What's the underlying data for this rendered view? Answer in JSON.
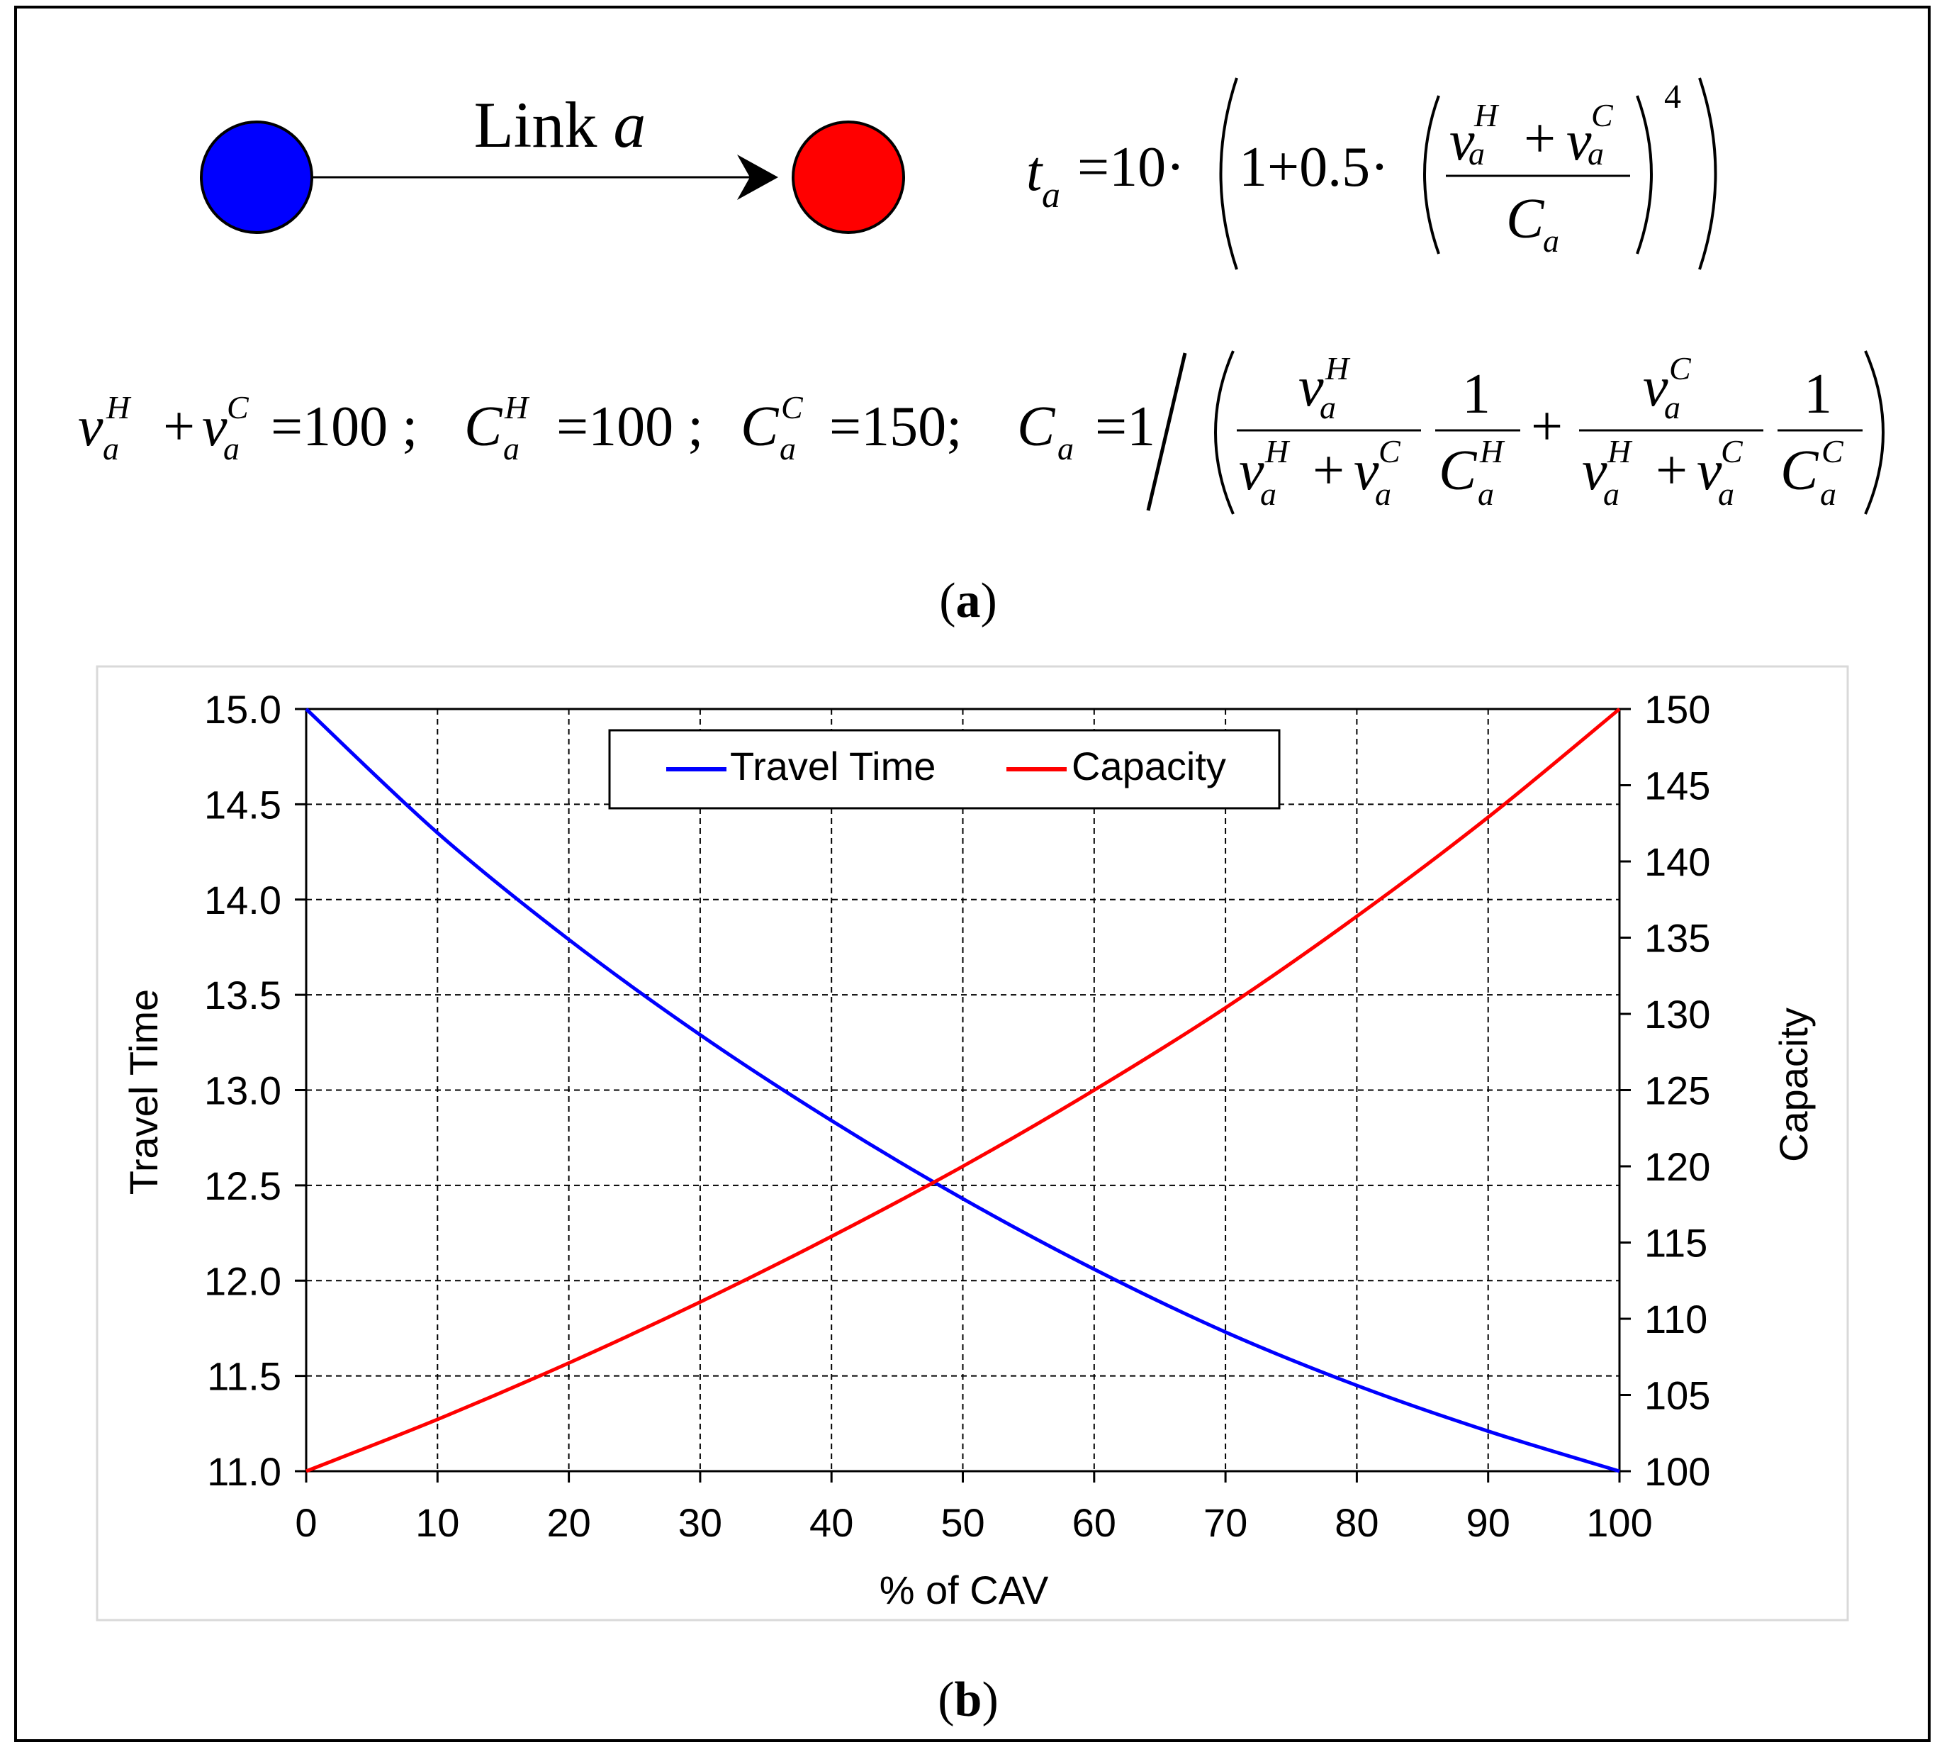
{
  "panel_a": {
    "link_label": "Link",
    "link_var": "a",
    "caption": "a",
    "colors": {
      "origin_node": "#0000ff",
      "destination_node": "#ff0000"
    },
    "formula_ta": {
      "lhs": "t",
      "lhs_sub": "a",
      "eq": "=10·",
      "inner": "1+0.5·",
      "exponent": "4",
      "num_v": "v",
      "sup_H": "H",
      "sup_C": "C",
      "sub": "a",
      "plus": "+",
      "den": "C"
    },
    "formula_params": {
      "sum_value": "=100 ;",
      "ch_value": "=100 ;",
      "cc_value": "=150;",
      "ca_eq": "=1",
      "one": "1",
      "plus": "+"
    }
  },
  "panel_b": {
    "caption": "b",
    "chart_data": {
      "type": "line",
      "title": "",
      "xlabel": "% of CAV",
      "ylabel": "Travel Time",
      "y2label": "Capacity",
      "xlim": [
        0,
        100
      ],
      "ylim": [
        11.0,
        15.0
      ],
      "y2lim": [
        100,
        150
      ],
      "x_ticks": [
        "0",
        "10",
        "20",
        "30",
        "40",
        "50",
        "60",
        "70",
        "80",
        "90",
        "100"
      ],
      "y_ticks": [
        "11.0",
        "11.5",
        "12.0",
        "12.5",
        "13.0",
        "13.5",
        "14.0",
        "14.5",
        "15.0"
      ],
      "y2_ticks": [
        "100",
        "105",
        "110",
        "115",
        "120",
        "125",
        "130",
        "135",
        "140",
        "145",
        "150"
      ],
      "grid": true,
      "legend_position": "top-center",
      "x": [
        0,
        10,
        20,
        30,
        40,
        50,
        60,
        70,
        80,
        90,
        100
      ],
      "series": [
        {
          "name": "Travel Time",
          "axis": "left",
          "color": "#0000ff",
          "values": [
            15.0,
            14.35,
            13.79,
            13.29,
            12.84,
            12.43,
            12.06,
            11.73,
            11.45,
            11.21,
            11.0
          ]
        },
        {
          "name": "Capacity",
          "axis": "right",
          "color": "#ff0000",
          "values": [
            100.0,
            103.4,
            107.1,
            111.1,
            115.4,
            120.0,
            125.0,
            130.4,
            136.4,
            142.9,
            150.0
          ]
        }
      ]
    }
  }
}
